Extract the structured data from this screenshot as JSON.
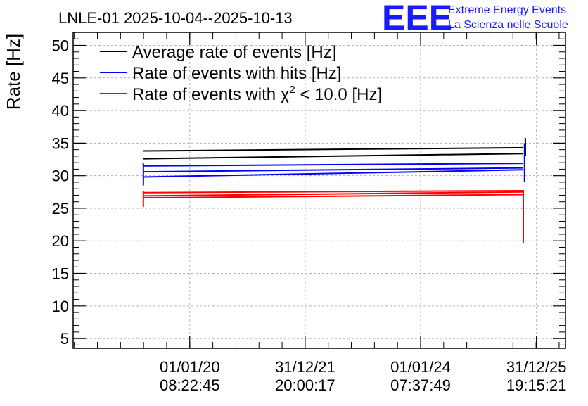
{
  "chart_data": {
    "type": "line",
    "title": "LNLE-01 2025-10-04--2025-10-13",
    "ylabel": "Rate [Hz]",
    "xlabel": "",
    "ylim": [
      3.5,
      52
    ],
    "y_ticks": [
      5,
      10,
      15,
      20,
      25,
      30,
      35,
      40,
      45,
      50
    ],
    "y_tick_labels": [
      "5",
      "10",
      "15",
      "20",
      "25",
      "30",
      "35",
      "40",
      "45",
      "50"
    ],
    "xlim": [
      0,
      1
    ],
    "x_ticks": [
      {
        "pos": 0.188,
        "line1": "01/01/20",
        "line2": "08:22:45"
      },
      {
        "pos": 0.469,
        "line1": "31/12/21",
        "line2": "20:00:17"
      },
      {
        "pos": 0.75,
        "line1": "01/01/24",
        "line2": "07:37:49"
      },
      {
        "pos": 1.032,
        "line1": "31/12/25",
        "line2": "19:15:21"
      }
    ],
    "grid": true,
    "legend_position": "top-left",
    "series": [
      {
        "name": "Average rate of events [Hz]",
        "legend_prefix": "Average rate of events [Hz]",
        "legend_sup": "",
        "legend_suffix": "",
        "color": "#000000",
        "segments": [
          {
            "x": [
              0.075,
              1.0
            ],
            "y": [
              33.8,
              34.3
            ]
          },
          {
            "x": [
              0.075,
              1.0
            ],
            "y": [
              32.6,
              33.4
            ]
          }
        ],
        "spikes": [
          {
            "x": 1.005,
            "y": [
              33.0,
              35.8
            ]
          }
        ]
      },
      {
        "name": "Rate of events with hits [Hz]",
        "legend_prefix": "Rate of events with hits [Hz]",
        "legend_sup": "",
        "legend_suffix": "",
        "color": "#0000ff",
        "segments": [
          {
            "x": [
              0.075,
              1.0
            ],
            "y": [
              31.5,
              31.9
            ]
          },
          {
            "x": [
              0.075,
              1.0
            ],
            "y": [
              30.6,
              31.2
            ]
          },
          {
            "x": [
              0.075,
              1.0
            ],
            "y": [
              29.8,
              30.9
            ]
          }
        ],
        "spikes": [
          {
            "x": 0.075,
            "y": [
              28.5,
              32.0
            ]
          },
          {
            "x": 1.003,
            "y": [
              29.0,
              35.0
            ]
          }
        ]
      },
      {
        "name": "Rate of events with χ2 < 10.0 [Hz]",
        "legend_prefix": "Rate of events with χ",
        "legend_sup": "2",
        "legend_suffix": " < 10.0 [Hz]",
        "color": "#ff0000",
        "segments": [
          {
            "x": [
              0.075,
              1.0
            ],
            "y": [
              27.4,
              27.7
            ]
          },
          {
            "x": [
              0.075,
              1.0
            ],
            "y": [
              26.9,
              27.5
            ]
          },
          {
            "x": [
              0.075,
              1.0
            ],
            "y": [
              26.6,
              27.1
            ]
          }
        ],
        "spikes": [
          {
            "x": 0.075,
            "y": [
              25.2,
              27.6
            ]
          },
          {
            "x": 1.0,
            "y": [
              19.6,
              27.8
            ]
          }
        ]
      }
    ]
  },
  "logo": {
    "mark": "EEE",
    "line1": "Extreme Energy Events",
    "line2": "La Scienza nelle Scuole"
  }
}
